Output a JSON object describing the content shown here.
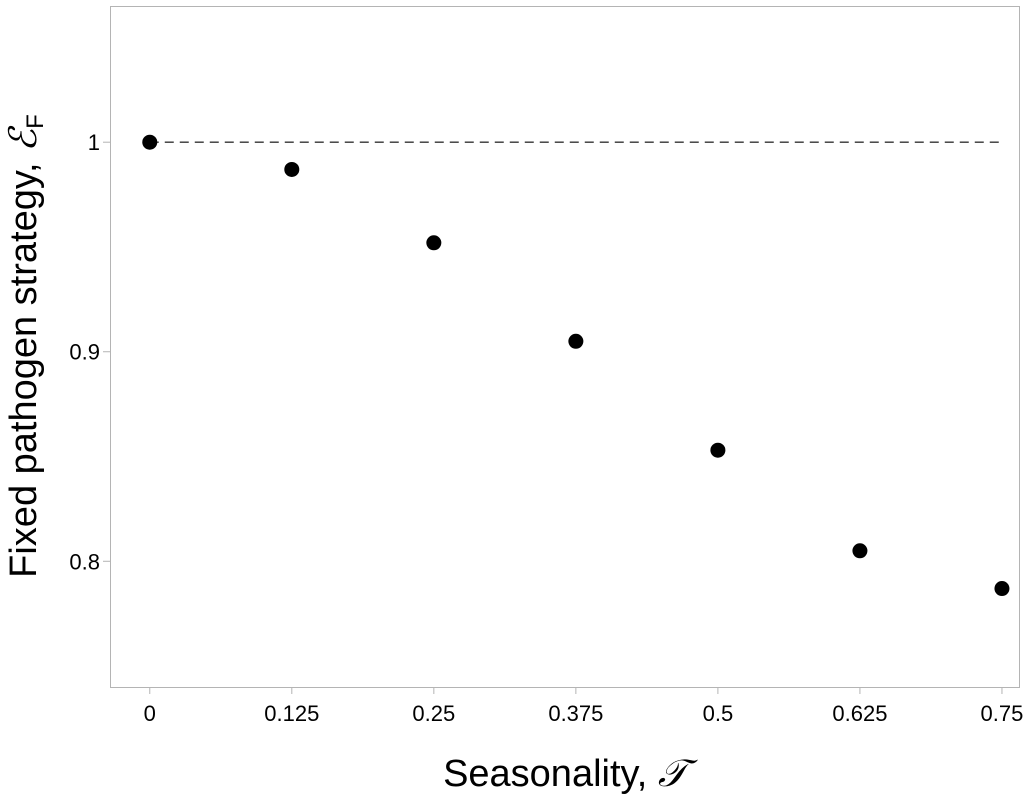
{
  "chart_data": {
    "type": "scatter",
    "title": "",
    "xlabel": {
      "text": "Seasonality, ",
      "symbol": "𝒯"
    },
    "ylabel": {
      "text": "Fixed pathogen strategy, ",
      "symbol": "ℰ",
      "subscript": "F"
    },
    "xlim": [
      -0.035,
      0.765
    ],
    "ylim": [
      0.74,
      1.065
    ],
    "xticks": [
      0,
      0.125,
      0.25,
      0.375,
      0.5,
      0.625,
      0.75
    ],
    "xtick_labels": [
      "0",
      "0.125",
      "0.25",
      "0.375",
      "0.5",
      "0.625",
      "0.75"
    ],
    "yticks": [
      0.8,
      0.9,
      1.0
    ],
    "ytick_labels": [
      "0.8",
      "0.9",
      "1"
    ],
    "grid": false,
    "reference_line": {
      "y": 1,
      "style": "dashed",
      "x_range": [
        0,
        0.75
      ]
    },
    "series": [
      {
        "x": [
          0,
          0.125,
          0.25,
          0.375,
          0.5,
          0.625,
          0.75
        ],
        "y": [
          1.0,
          0.987,
          0.952,
          0.905,
          0.853,
          0.805,
          0.787
        ],
        "color": "#000000"
      }
    ]
  }
}
